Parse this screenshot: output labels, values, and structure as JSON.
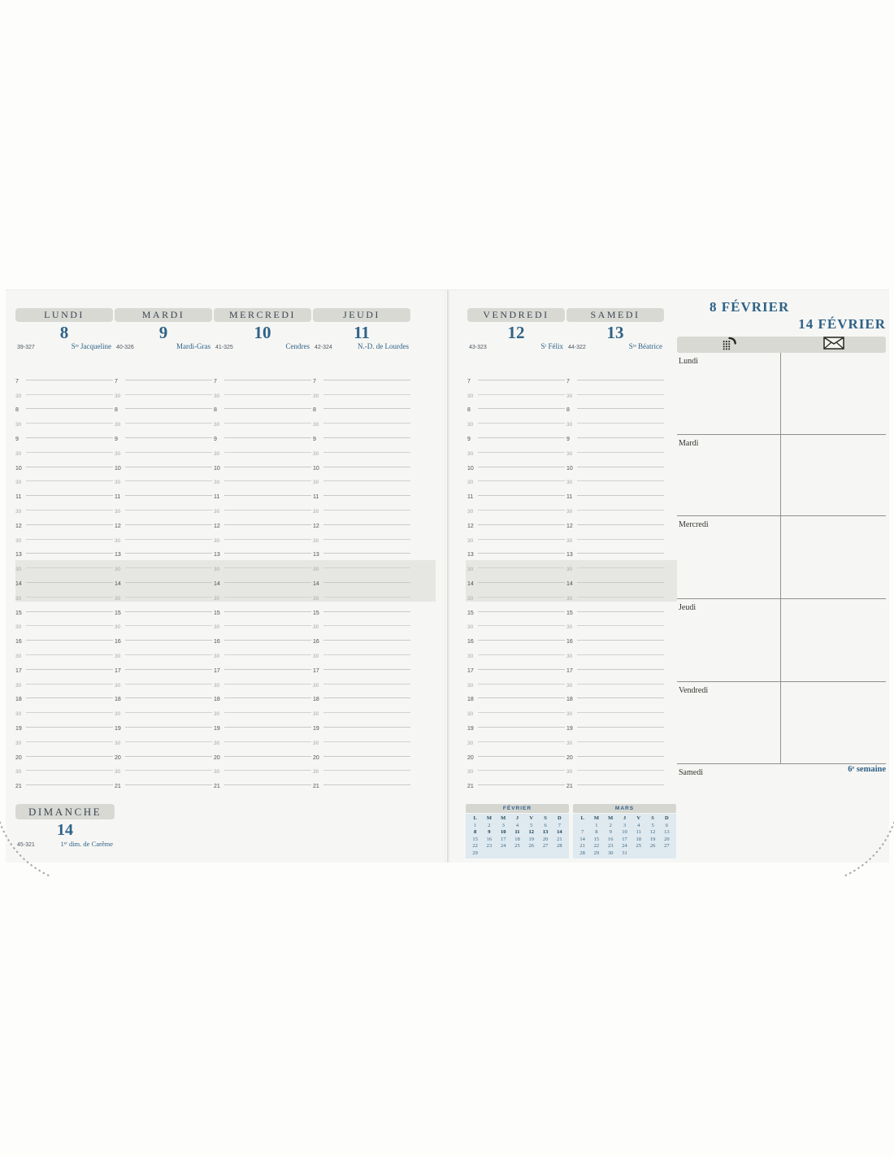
{
  "planner": {
    "week_days": [
      {
        "name": "LUNDI",
        "number": "8",
        "code": "39-327",
        "saint": "Sᵗᵉ Jacqueline"
      },
      {
        "name": "MARDI",
        "number": "9",
        "code": "40-326",
        "saint": "Mardi-Gras"
      },
      {
        "name": "MERCREDI",
        "number": "10",
        "code": "41-325",
        "saint": "Cendres"
      },
      {
        "name": "JEUDI",
        "number": "11",
        "code": "42-324",
        "saint": "N.-D. de Lourdes"
      },
      {
        "name": "VENDREDI",
        "number": "12",
        "code": "43-323",
        "saint": "Sᵗ Félix"
      },
      {
        "name": "SAMEDI",
        "number": "13",
        "code": "44-322",
        "saint": "Sᵗᵉ Béatrice"
      }
    ],
    "sunday": {
      "name": "DIMANCHE",
      "number": "14",
      "code": "45-321",
      "saint": "1ᵉʳ dim. de Carême"
    },
    "times": [
      "7",
      "30",
      "8",
      "30",
      "9",
      "30",
      "10",
      "30",
      "11",
      "30",
      "12",
      "30",
      "13",
      "30",
      "14",
      "30",
      "15",
      "30",
      "16",
      "30",
      "17",
      "30",
      "18",
      "30",
      "19",
      "30",
      "20",
      "30",
      "21"
    ],
    "notes": {
      "title_line1": "8 FÉVRIER",
      "title_line2": "14 FÉVRIER",
      "icons": [
        "phone-icon",
        "envelope-icon"
      ],
      "days": [
        "Lundi",
        "Mardi",
        "Mercredi",
        "Jeudi",
        "Vendredi",
        "Samedi"
      ],
      "week_label": "6ᵉ semaine"
    },
    "mini_calendars": [
      {
        "month": "FÉVRIER",
        "headers": [
          "L",
          "M",
          "M",
          "J",
          "V",
          "S",
          "D"
        ],
        "weeks": [
          [
            "1",
            "2",
            "3",
            "4",
            "5",
            "6",
            "7"
          ],
          [
            "8",
            "9",
            "10",
            "11",
            "12",
            "13",
            "14"
          ],
          [
            "15",
            "16",
            "17",
            "18",
            "19",
            "20",
            "21"
          ],
          [
            "22",
            "23",
            "24",
            "25",
            "26",
            "27",
            "28"
          ],
          [
            "29",
            "",
            "",
            "",
            "",
            "",
            ""
          ]
        ],
        "bold_week": 1
      },
      {
        "month": "MARS",
        "headers": [
          "L",
          "M",
          "M",
          "J",
          "V",
          "S",
          "D"
        ],
        "weeks": [
          [
            "",
            "1",
            "2",
            "3",
            "4",
            "5",
            "6"
          ],
          [
            "7",
            "8",
            "9",
            "10",
            "11",
            "12",
            "13"
          ],
          [
            "14",
            "15",
            "16",
            "17",
            "18",
            "19",
            "20"
          ],
          [
            "21",
            "22",
            "23",
            "24",
            "25",
            "26",
            "27"
          ],
          [
            "28",
            "29",
            "30",
            "31",
            "",
            "",
            ""
          ]
        ],
        "bold_week": -1
      }
    ]
  },
  "colors": {
    "accent_blue": "#2e6288",
    "tab_gray": "#d9d9d4",
    "page_bg": "#f6f6f4",
    "rule_light": "#c9c9c6",
    "rule_dark": "#8f8f8c",
    "lunch_shading": "#e6e6e2",
    "minical_bg": "#dfe9f0"
  }
}
